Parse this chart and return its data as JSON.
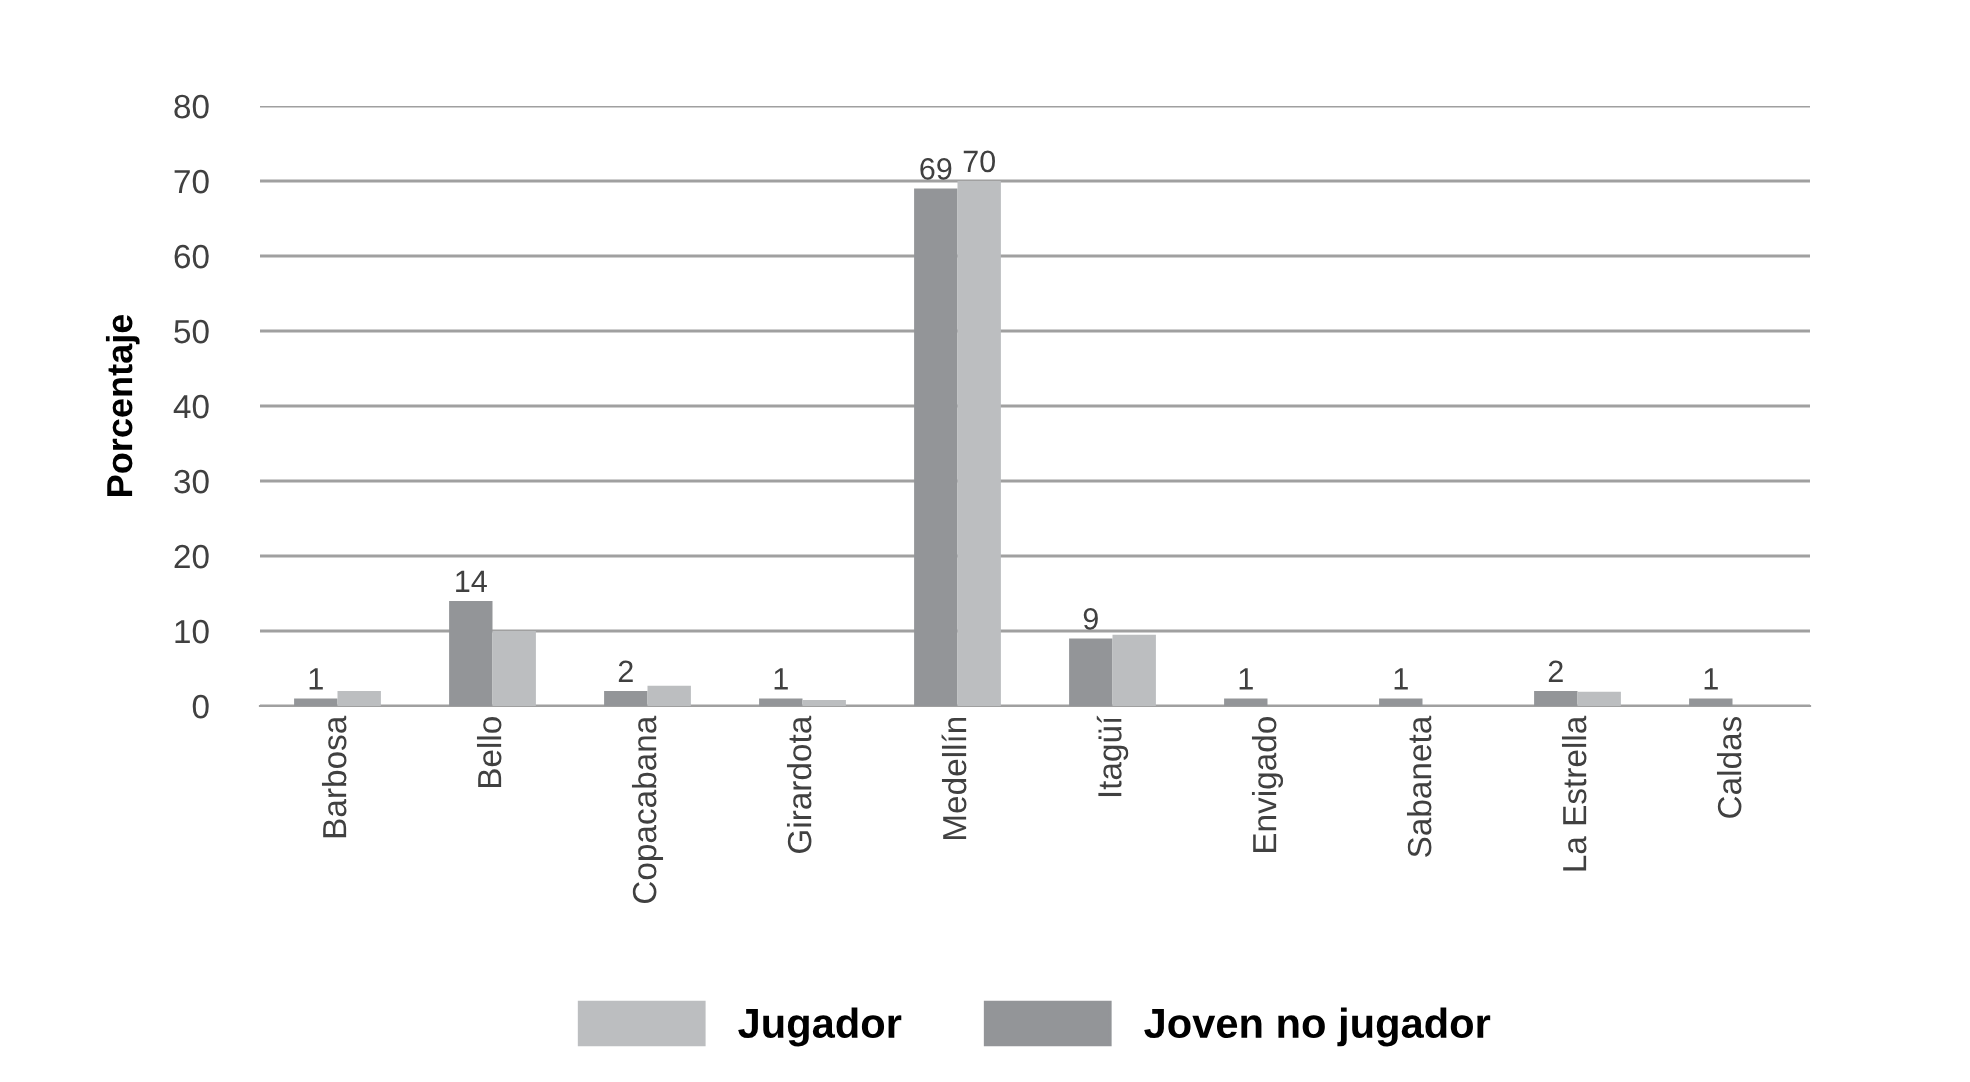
{
  "chart_data": {
    "type": "bar",
    "ylabel": "Porcentaje",
    "categories": [
      "Barbosa",
      "Bello",
      "Copacabana",
      "Girardota",
      "Medellín",
      "Itagüí",
      "Envigado",
      "Sabaneta",
      "La Estrella",
      "Caldas"
    ],
    "series": [
      {
        "name": "Joven no jugador",
        "color": "#939598",
        "values": [
          1,
          14,
          2,
          1,
          69,
          9,
          1,
          1,
          2,
          1
        ],
        "value_labels": [
          "1",
          "14",
          "2",
          "1",
          "69",
          "9",
          "1",
          "1",
          "2",
          "1"
        ]
      },
      {
        "name": "Jugador",
        "color": "#bcbec0",
        "values": [
          2,
          10,
          2.7,
          0.8,
          70,
          9.5,
          0,
          0,
          1.9,
          0
        ],
        "value_labels": [
          null,
          null,
          null,
          null,
          "70",
          null,
          null,
          null,
          null,
          null
        ]
      }
    ],
    "ylim": [
      0,
      80
    ],
    "yticks": [
      0,
      10,
      20,
      30,
      40,
      50,
      60,
      70,
      80
    ],
    "grid": "y",
    "legend": "bottom"
  }
}
